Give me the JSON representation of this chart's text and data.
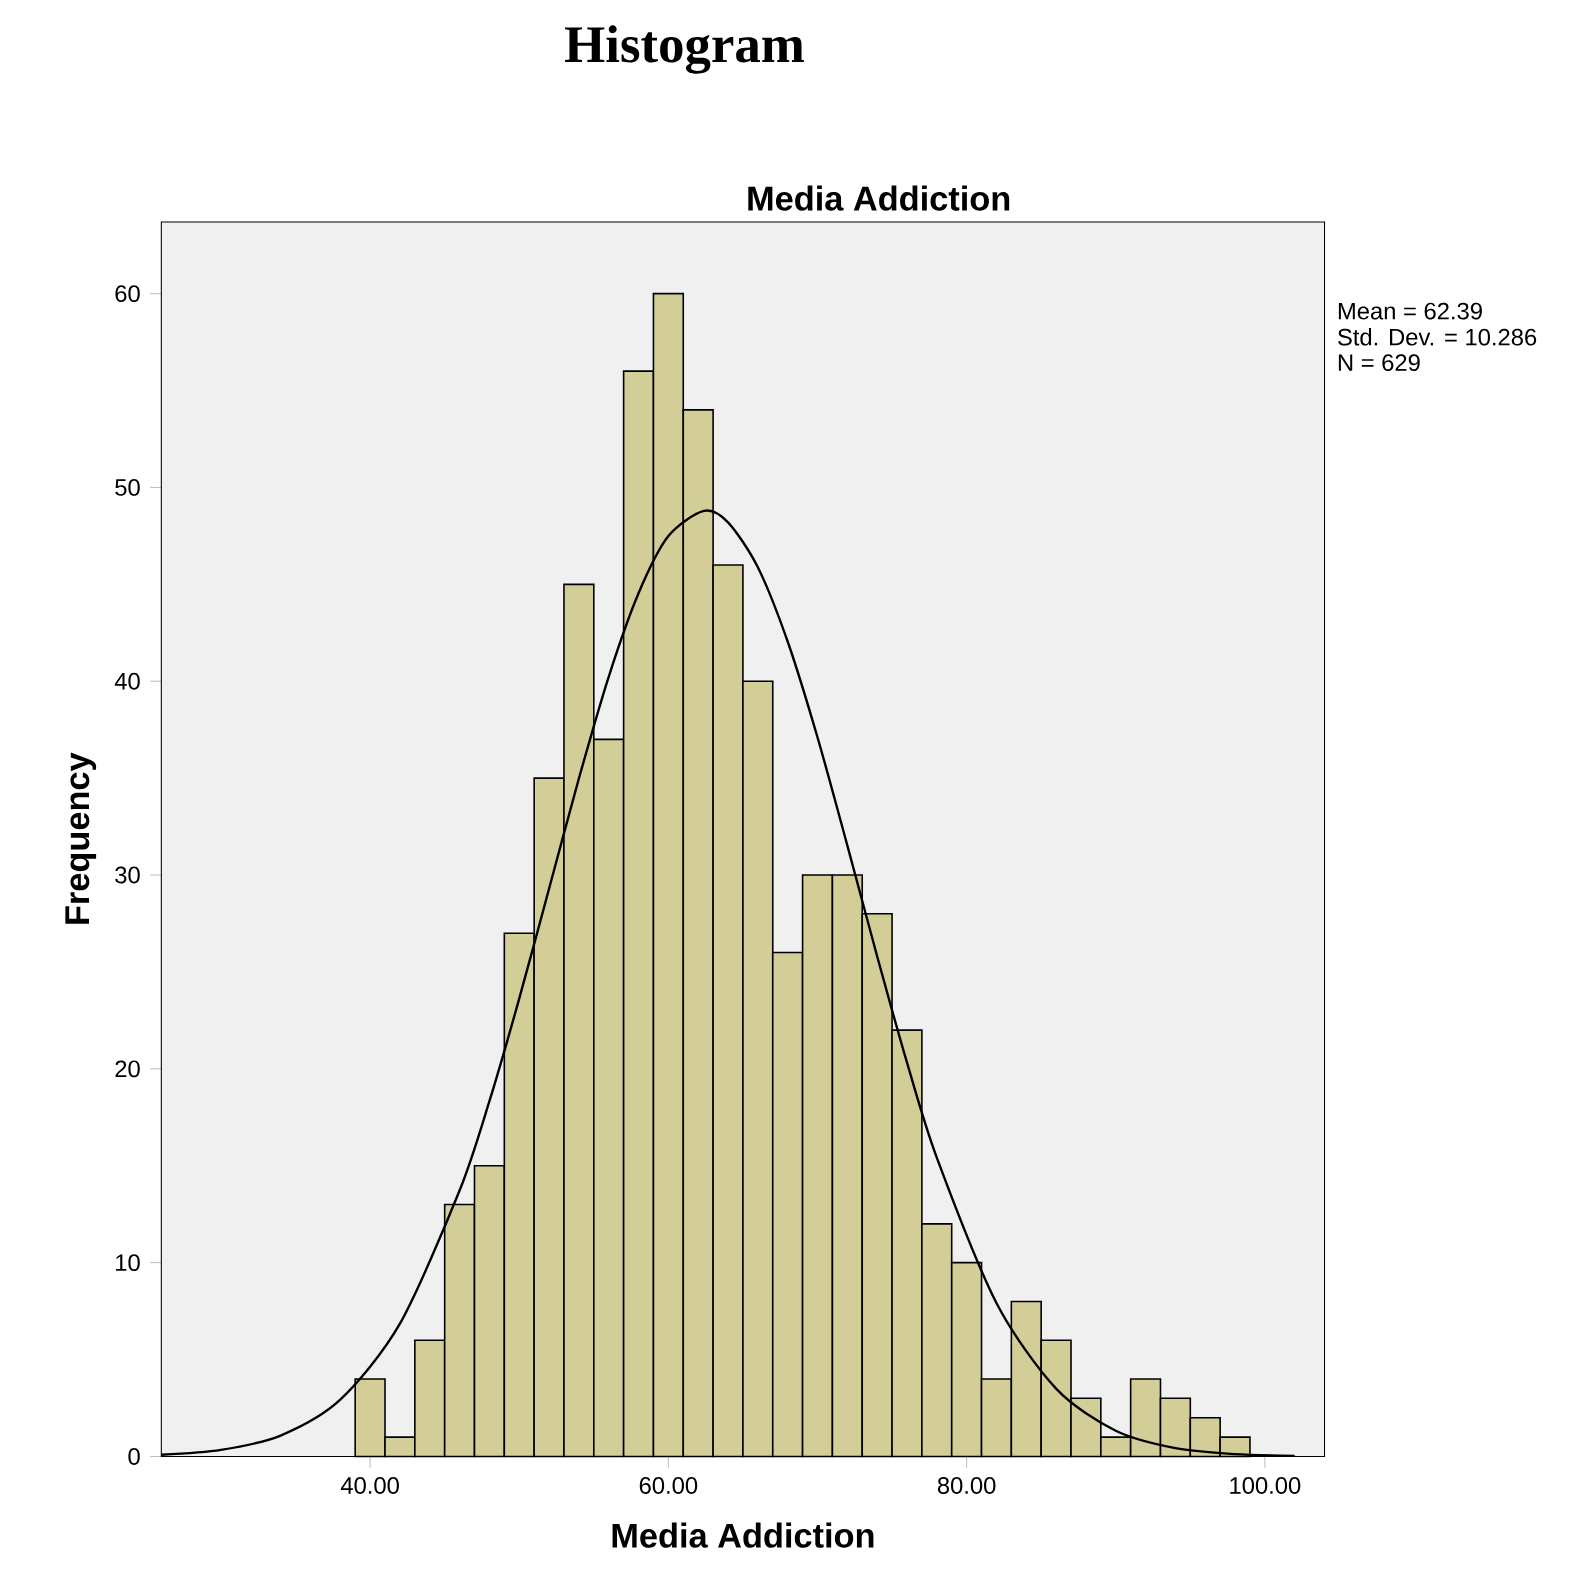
{
  "chart_data": {
    "type": "histogram",
    "title": "Histogram",
    "subtitle": "Media Addiction",
    "xlabel": "Media Addiction",
    "ylabel": "Frequency",
    "bins": [
      39,
      41,
      43,
      45,
      47,
      49,
      51,
      53,
      55,
      57,
      59,
      61,
      63,
      65,
      67,
      69,
      71,
      73,
      75,
      77,
      79,
      81,
      83,
      85,
      87,
      89,
      91,
      93,
      95,
      97,
      99
    ],
    "values": [
      4,
      1,
      6,
      13,
      15,
      27,
      35,
      45,
      37,
      56,
      60,
      54,
      46,
      40,
      26,
      30,
      30,
      28,
      22,
      12,
      10,
      4,
      8,
      6,
      3,
      1,
      4,
      3,
      2,
      1
    ],
    "color": "#d3ce98",
    "series": [
      {
        "type": "line",
        "color": "#000000",
        "x": [
          26,
          30,
          34,
          38,
          42,
          46,
          48,
          50,
          52,
          54,
          56,
          58,
          60,
          62.39,
          64,
          66,
          68,
          70,
          72,
          74,
          76,
          78,
          82,
          86,
          90,
          94,
          98,
          102
        ],
        "values": [
          0.09,
          0.34,
          1.08,
          2.93,
          6.85,
          13.72,
          18.33,
          23.62,
          29.29,
          34.98,
          40.23,
          44.54,
          47.49,
          48.79,
          48.2,
          45.88,
          42.05,
          37.11,
          31.53,
          25.81,
          20.33,
          15.42,
          7.92,
          3.5,
          1.33,
          0.43,
          0.12,
          0.03
        ]
      }
    ],
    "xlim": [
      26,
      104
    ],
    "ylim": [
      0,
      63.7
    ],
    "xticks": [
      {
        "value": 40,
        "label": "40.00"
      },
      {
        "value": 60,
        "label": "60.00"
      },
      {
        "value": 80,
        "label": "80.00"
      },
      {
        "value": 100,
        "label": "100.00"
      }
    ],
    "yticks": [
      0,
      10,
      20,
      30,
      40,
      50,
      60
    ],
    "annotations": [
      "Mean = 62.39",
      "Std. Dev. = 10.286",
      "N = 629"
    ]
  }
}
